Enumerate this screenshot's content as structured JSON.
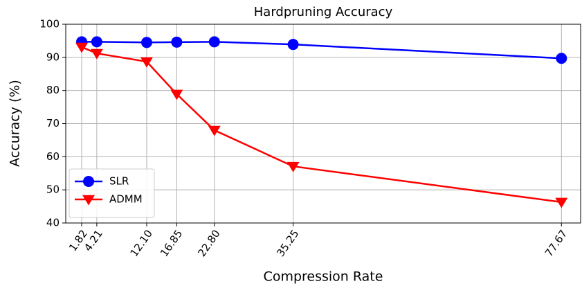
{
  "chart_data": {
    "type": "line",
    "title": "Hardpruning Accuracy",
    "xlabel": "Compression Rate",
    "ylabel": "Accuracy (%)",
    "x": [
      1.82,
      4.21,
      12.1,
      16.85,
      22.8,
      35.25,
      77.67
    ],
    "series": [
      {
        "name": "SLR",
        "color": "#0000ff",
        "marker": "circle",
        "values": [
          94.7,
          94.7,
          94.5,
          94.6,
          94.7,
          93.9,
          89.7
        ]
      },
      {
        "name": "ADMM",
        "color": "#ff0000",
        "marker": "triangle-down",
        "values": [
          93.1,
          91.2,
          88.7,
          78.9,
          68.0,
          57.1,
          46.3
        ]
      }
    ],
    "xlim": [
      -0.7,
      80.7
    ],
    "xticks": [
      1.82,
      4.21,
      {
        "value": 12.1,
        "label": "12.10"
      },
      16.85,
      {
        "value": 22.8,
        "label": "22.80"
      },
      35.25,
      77.67
    ],
    "ylim": [
      40,
      100
    ],
    "yticks": [
      40,
      50,
      60,
      70,
      80,
      90,
      100
    ],
    "grid": true,
    "legend": "lower left"
  }
}
